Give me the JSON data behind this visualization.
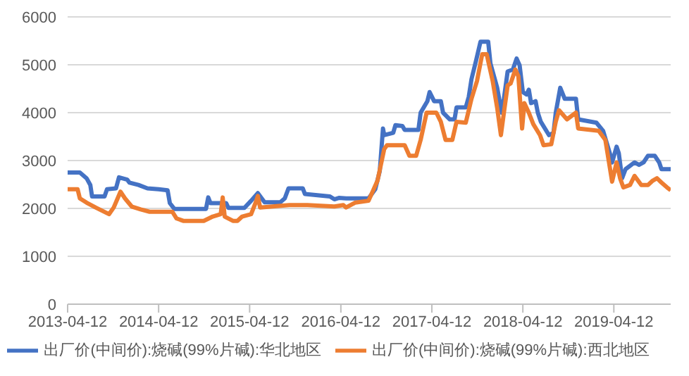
{
  "chart_data": {
    "type": "line",
    "xlim": [
      "2013-04-12",
      "2019-11-26"
    ],
    "xticks": [
      "2013-04-12",
      "2014-04-12",
      "2015-04-12",
      "2016-04-12",
      "2017-04-12",
      "2018-04-12",
      "2019-04-12"
    ],
    "ylim": [
      0,
      6000
    ],
    "yticks": [
      0,
      1000,
      2000,
      3000,
      4000,
      5000,
      6000
    ],
    "grid": "y",
    "legend": "bottom",
    "marker": "none",
    "line_style": "solid",
    "series": [
      {
        "name": "出厂价(中间价):烧碱(99%片碱):华北地区",
        "color": "#4472c4",
        "x": [
          "2013-04-12",
          "2013-05-31",
          "2013-06-27",
          "2013-07-12",
          "2013-07-19",
          "2013-09-07",
          "2013-09-17",
          "2013-10-23",
          "2013-11-04",
          "2013-12-07",
          "2013-12-16",
          "2014-01-21",
          "2014-02-26",
          "2014-04-12",
          "2014-05-18",
          "2014-05-27",
          "2014-06-14",
          "2014-10-19",
          "2014-10-28",
          "2014-11-06",
          "2015-01-08",
          "2015-01-17",
          "2015-03-22",
          "2015-04-18",
          "2015-05-15",
          "2015-06-11",
          "2015-08-13",
          "2015-08-31",
          "2015-09-15",
          "2015-11-11",
          "2015-11-20",
          "2016-02-28",
          "2016-03-17",
          "2016-04-04",
          "2016-05-03",
          "2016-08-01",
          "2016-08-28",
          "2016-09-15",
          "2016-09-28",
          "2016-10-03",
          "2016-11-08",
          "2016-11-17",
          "2016-12-15",
          "2016-12-24",
          "2017-02-17",
          "2017-02-26",
          "2017-03-25",
          "2017-04-03",
          "2017-04-21",
          "2017-05-18",
          "2017-05-27",
          "2017-06-23",
          "2017-07-12",
          "2017-07-20",
          "2017-08-26",
          "2017-09-07",
          "2017-09-18",
          "2017-10-06",
          "2017-10-24",
          "2017-11-24",
          "2017-12-03",
          "2017-12-30",
          "2018-01-17",
          "2018-01-26",
          "2018-02-10",
          "2018-03-03",
          "2018-03-18",
          "2018-03-30",
          "2018-04-12",
          "2018-04-27",
          "2018-05-06",
          "2018-05-15",
          "2018-06-02",
          "2018-06-11",
          "2018-06-23",
          "2018-07-26",
          "2018-08-13",
          "2018-08-22",
          "2018-09-09",
          "2018-09-27",
          "2018-11-11",
          "2018-11-20",
          "2019-02-01",
          "2019-02-28",
          "2019-03-27",
          "2019-04-05",
          "2019-04-23",
          "2019-05-02",
          "2019-05-15",
          "2019-05-29",
          "2019-07-04",
          "2019-07-22",
          "2019-08-09",
          "2019-08-27",
          "2019-09-23",
          "2019-10-11",
          "2019-10-20",
          "2019-11-26"
        ],
        "values": [
          2750,
          2750,
          2630,
          2490,
          2250,
          2250,
          2400,
          2420,
          2650,
          2600,
          2540,
          2490,
          2420,
          2400,
          2380,
          2110,
          1990,
          1990,
          2230,
          2110,
          2110,
          2010,
          2010,
          2160,
          2320,
          2130,
          2130,
          2210,
          2420,
          2420,
          2300,
          2250,
          2190,
          2220,
          2210,
          2210,
          2400,
          2780,
          3670,
          3530,
          3580,
          3740,
          3720,
          3640,
          3640,
          4000,
          4240,
          4430,
          4240,
          4240,
          4000,
          3860,
          3860,
          4110,
          4110,
          4330,
          4700,
          5080,
          5480,
          5480,
          5030,
          4520,
          4000,
          4290,
          4860,
          4900,
          5130,
          4990,
          4430,
          4380,
          4480,
          4200,
          4240,
          4000,
          3810,
          3530,
          3580,
          4000,
          4520,
          4290,
          4290,
          3860,
          3790,
          3620,
          3150,
          2960,
          3290,
          3150,
          2630,
          2820,
          2960,
          2910,
          2960,
          3100,
          3100,
          2960,
          2820,
          2820
        ]
      },
      {
        "name": "出厂价(中间价):烧碱(99%片碱):西北地区",
        "color": "#ed7d31",
        "x": [
          "2013-04-12",
          "2013-05-22",
          "2013-05-31",
          "2013-06-27",
          "2013-08-02",
          "2013-09-25",
          "2013-10-14",
          "2013-11-10",
          "2013-11-28",
          "2013-12-25",
          "2014-01-30",
          "2014-03-07",
          "2014-06-06",
          "2014-06-23",
          "2014-07-20",
          "2014-10-10",
          "2014-11-15",
          "2014-12-17",
          "2014-12-25",
          "2015-01-02",
          "2015-02-04",
          "2015-02-22",
          "2015-03-13",
          "2015-04-18",
          "2015-05-06",
          "2015-05-15",
          "2015-05-24",
          "2015-09-18",
          "2015-11-30",
          "2016-03-17",
          "2016-04-22",
          "2016-05-03",
          "2016-06-08",
          "2016-08-01",
          "2016-09-06",
          "2016-10-03",
          "2016-10-14",
          "2016-12-24",
          "2017-01-12",
          "2017-02-08",
          "2017-02-26",
          "2017-03-22",
          "2017-04-30",
          "2017-05-18",
          "2017-06-06",
          "2017-07-03",
          "2017-07-20",
          "2017-08-26",
          "2017-09-18",
          "2017-10-10",
          "2017-10-31",
          "2017-11-18",
          "2017-12-12",
          "2017-12-30",
          "2018-01-14",
          "2018-01-26",
          "2018-02-10",
          "2018-02-22",
          "2018-03-13",
          "2018-03-25",
          "2018-04-09",
          "2018-04-18",
          "2018-05-06",
          "2018-05-24",
          "2018-06-20",
          "2018-07-04",
          "2018-08-04",
          "2018-08-22",
          "2018-09-04",
          "2018-10-06",
          "2018-11-11",
          "2018-11-20",
          "2019-02-10",
          "2019-03-09",
          "2019-04-05",
          "2019-04-23",
          "2019-05-07",
          "2019-05-20",
          "2019-06-16",
          "2019-07-04",
          "2019-07-31",
          "2019-08-27",
          "2019-09-15",
          "2019-10-02",
          "2019-10-20",
          "2019-11-11",
          "2019-11-26"
        ],
        "values": [
          2400,
          2400,
          2210,
          2120,
          2020,
          1880,
          2020,
          2350,
          2210,
          2040,
          1980,
          1930,
          1930,
          1790,
          1740,
          1740,
          1830,
          1880,
          2230,
          1830,
          1740,
          1740,
          1830,
          1880,
          2120,
          2260,
          2020,
          2070,
          2070,
          2040,
          2070,
          2020,
          2120,
          2160,
          2580,
          3240,
          3320,
          3320,
          3100,
          3100,
          3430,
          4000,
          4000,
          3810,
          3430,
          3430,
          3810,
          3790,
          4290,
          4660,
          5220,
          5220,
          4660,
          4100,
          3530,
          4000,
          4570,
          4610,
          4900,
          4760,
          3670,
          4200,
          4000,
          3760,
          3530,
          3320,
          3340,
          3810,
          4050,
          3860,
          4000,
          3670,
          3620,
          3430,
          2560,
          2960,
          2630,
          2440,
          2490,
          2680,
          2490,
          2490,
          2580,
          2630,
          2540,
          2440,
          2380
        ]
      }
    ]
  }
}
